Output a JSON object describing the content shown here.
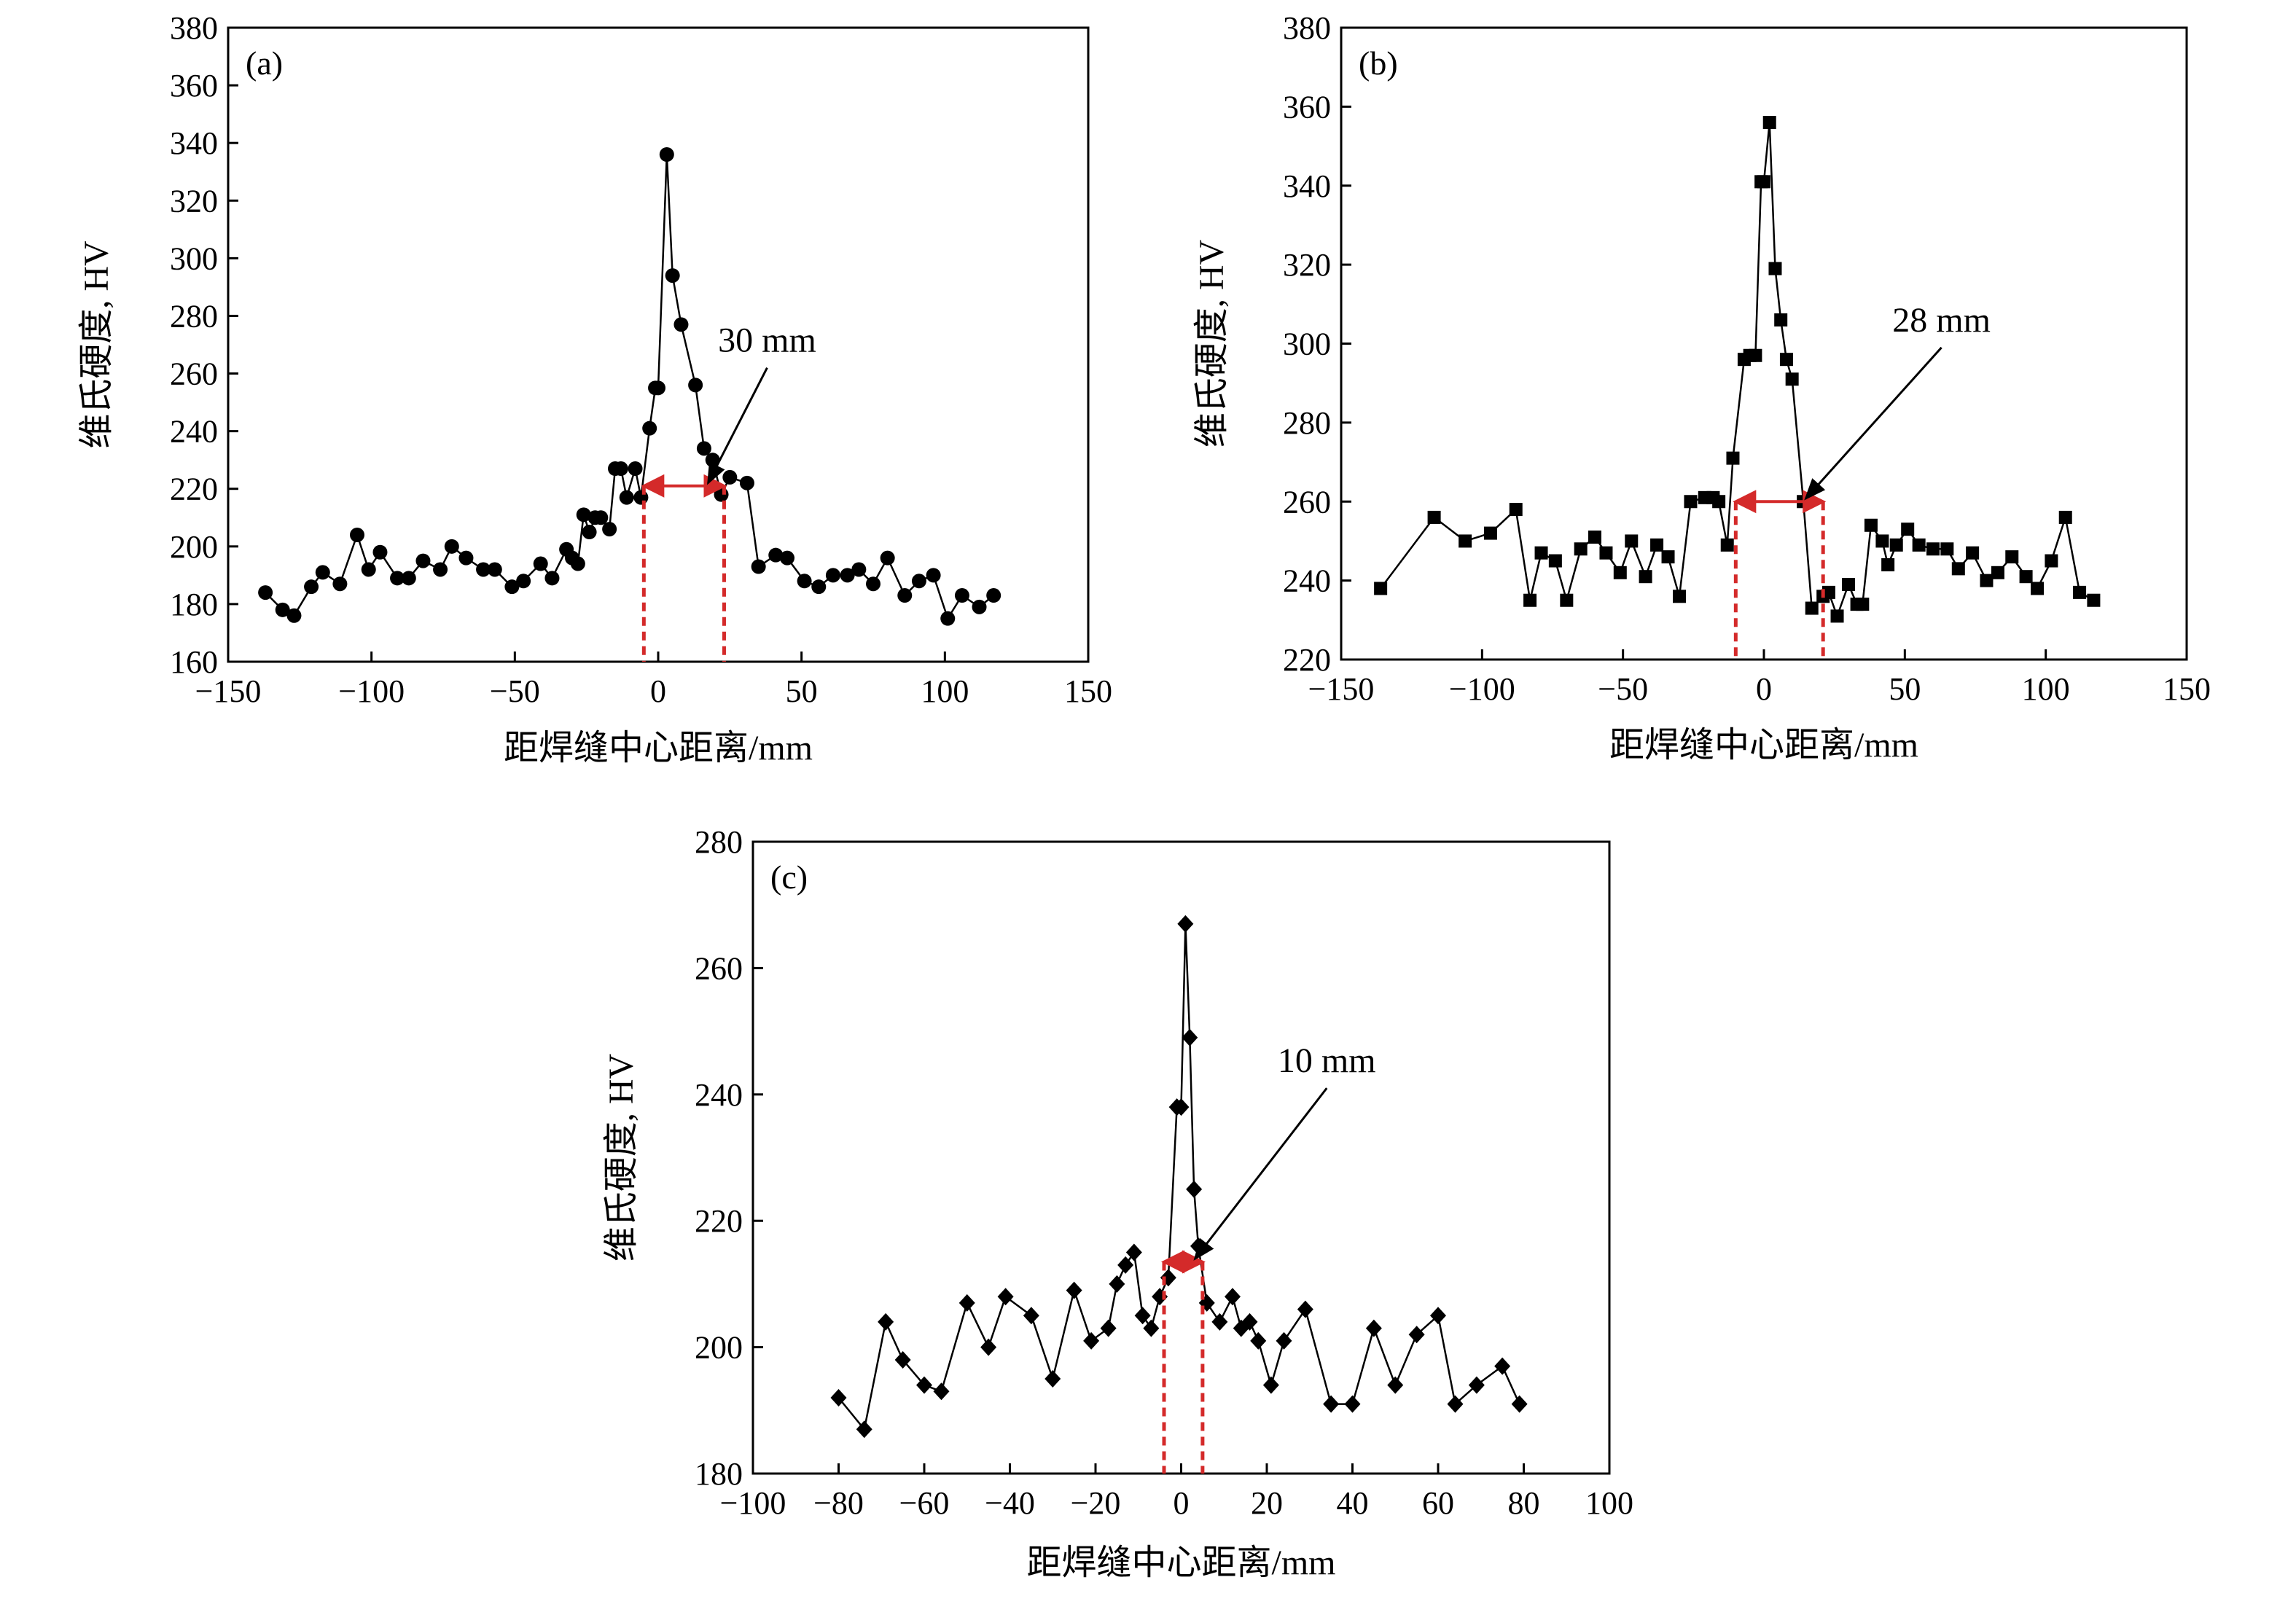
{
  "chart_data": [
    {
      "type": "line",
      "panel_label": "(a)",
      "xlabel": "距焊缝中心距离/mm",
      "ylabel": "维氏硬度, HV",
      "xlim": [
        -150,
        150
      ],
      "ylim": [
        160,
        380
      ],
      "xticks": [
        -150,
        -100,
        -50,
        0,
        50,
        100,
        150
      ],
      "yticks": [
        160,
        180,
        200,
        220,
        240,
        260,
        280,
        300,
        320,
        340,
        360,
        380
      ],
      "xtick_labels": [
        "−150",
        "−100",
        "−50",
        "0",
        "50",
        "100",
        "150"
      ],
      "ytick_labels": [
        "160",
        "180",
        "200",
        "220",
        "240",
        "260",
        "280",
        "300",
        "320",
        "340",
        "360",
        "380"
      ],
      "marker": "circle",
      "grid": false,
      "annotation": {
        "text": "30 mm",
        "x_from": -5,
        "x_to": 23,
        "y": 221,
        "arrow_start": [
          38,
          262
        ]
      },
      "series": [
        {
          "x": [
            -137,
            -131,
            -127,
            -121,
            -117,
            -111,
            -105,
            -101,
            -97,
            -91,
            -87,
            -82,
            -76,
            -72,
            -67,
            -61,
            -57,
            -51,
            -47,
            -41,
            -37,
            -32,
            -30,
            -28,
            -26,
            -24,
            -22,
            -20,
            -17,
            -15,
            -13,
            -11,
            -8,
            -6,
            -3,
            -1,
            0,
            3,
            5,
            8,
            13,
            16,
            19,
            22,
            25,
            31,
            35,
            41,
            45,
            51,
            56,
            61,
            66,
            70,
            75,
            80,
            86,
            91,
            96,
            101,
            106,
            112,
            117
          ],
          "y": [
            184,
            178,
            176,
            186,
            191,
            187,
            204,
            192,
            198,
            189,
            189,
            195,
            192,
            200,
            196,
            192,
            192,
            186,
            188,
            194,
            189,
            199,
            196,
            194,
            211,
            205,
            210,
            210,
            206,
            227,
            227,
            217,
            227,
            217,
            241,
            255,
            255,
            336,
            294,
            277,
            256,
            234,
            230,
            218,
            224,
            222,
            193,
            197,
            196,
            188,
            186,
            190,
            190,
            192,
            187,
            196,
            183,
            188,
            190,
            175,
            183,
            179,
            183
          ]
        }
      ]
    },
    {
      "type": "line",
      "panel_label": "(b)",
      "xlabel": "距焊缝中心距离/mm",
      "ylabel": "维氏硬度, HV",
      "xlim": [
        -150,
        150
      ],
      "ylim": [
        220,
        380
      ],
      "xticks": [
        -150,
        -100,
        -50,
        0,
        50,
        100,
        150
      ],
      "yticks": [
        220,
        240,
        260,
        280,
        300,
        320,
        340,
        360,
        380
      ],
      "xtick_labels": [
        "−150",
        "−100",
        "−50",
        "0",
        "50",
        "100",
        "150"
      ],
      "ytick_labels": [
        "220",
        "240",
        "260",
        "280",
        "300",
        "320",
        "340",
        "360",
        "380"
      ],
      "marker": "square",
      "grid": false,
      "annotation": {
        "text": "28 mm",
        "x_from": -10,
        "x_to": 21,
        "y": 260,
        "arrow_start": [
          63,
          299
        ]
      },
      "series": [
        {
          "x": [
            -136,
            -117,
            -106,
            -97,
            -88,
            -83,
            -79,
            -74,
            -70,
            -65,
            -60,
            -56,
            -51,
            -47,
            -42,
            -38,
            -34,
            -30,
            -26,
            -21,
            -18,
            -16,
            -13,
            -11,
            -7,
            -5,
            -3,
            -1,
            0,
            2,
            4,
            6,
            8,
            10,
            14,
            17,
            21,
            23,
            26,
            30,
            33,
            35,
            38,
            42,
            44,
            47,
            51,
            55,
            60,
            65,
            69,
            74,
            79,
            83,
            88,
            93,
            97,
            102,
            107,
            112,
            117
          ],
          "y": [
            238,
            256,
            250,
            252,
            258,
            235,
            247,
            245,
            235,
            248,
            251,
            247,
            242,
            250,
            241,
            249,
            246,
            236,
            260,
            261,
            261,
            260,
            249,
            271,
            296,
            297,
            297,
            341,
            341,
            356,
            319,
            306,
            296,
            291,
            260,
            233,
            236,
            237,
            231,
            239,
            234,
            234,
            254,
            250,
            244,
            249,
            253,
            249,
            248,
            248,
            243,
            247,
            240,
            242,
            246,
            241,
            238,
            245,
            256,
            237,
            235
          ]
        }
      ]
    },
    {
      "type": "line",
      "panel_label": "(c)",
      "xlabel": "距焊缝中心距离/mm",
      "ylabel": "维氏硬度, HV",
      "xlim": [
        -100,
        100
      ],
      "ylim": [
        180,
        280
      ],
      "xticks": [
        -100,
        -80,
        -60,
        -40,
        -20,
        0,
        20,
        40,
        60,
        80,
        100
      ],
      "yticks": [
        180,
        200,
        220,
        240,
        260,
        280
      ],
      "xtick_labels": [
        "−100",
        "−80",
        "−60",
        "−40",
        "−20",
        "0",
        "20",
        "40",
        "60",
        "80",
        "100"
      ],
      "ytick_labels": [
        "180",
        "200",
        "220",
        "240",
        "260",
        "280"
      ],
      "marker": "diamond",
      "grid": false,
      "annotation": {
        "text": "10 mm",
        "x_from": -4,
        "x_to": 5,
        "y": 213.5,
        "arrow_start": [
          34,
          241
        ]
      },
      "series": [
        {
          "x": [
            -80,
            -74,
            -69,
            -65,
            -60,
            -56,
            -50,
            -45,
            -41,
            -35,
            -30,
            -25,
            -21,
            -17,
            -15,
            -13,
            -11,
            -9,
            -7,
            -5,
            -3,
            -1,
            0,
            1,
            2,
            3,
            4,
            6,
            9,
            12,
            14,
            16,
            18,
            21,
            24,
            29,
            35,
            40,
            45,
            50,
            55,
            60,
            64,
            69,
            75,
            79
          ],
          "y": [
            192,
            187,
            204,
            198,
            194,
            193,
            207,
            200,
            208,
            205,
            195,
            209,
            201,
            203,
            210,
            213,
            215,
            205,
            203,
            208,
            211,
            238,
            238,
            267,
            249,
            225,
            216,
            207,
            204,
            208,
            203,
            204,
            201,
            194,
            201,
            206,
            191,
            191,
            203,
            194,
            202,
            205,
            191,
            194,
            197,
            191
          ]
        }
      ]
    }
  ]
}
